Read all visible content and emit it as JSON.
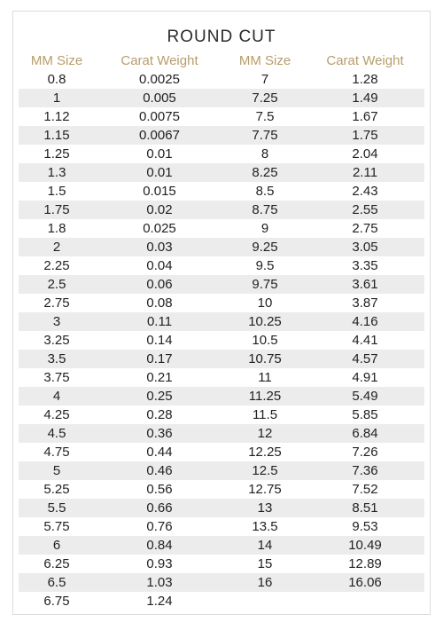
{
  "title": "ROUND CUT",
  "colors": {
    "header_text": "#b79d6b",
    "row_shade": "#ececec",
    "text": "#222222"
  },
  "headers": [
    "MM Size",
    "Carat Weight",
    "MM Size",
    "Carat Weight"
  ],
  "rows": [
    [
      "0.8",
      "0.0025",
      "7",
      "1.28"
    ],
    [
      "1",
      "0.005",
      "7.25",
      "1.49"
    ],
    [
      "1.12",
      "0.0075",
      "7.5",
      "1.67"
    ],
    [
      "1.15",
      "0.0067",
      "7.75",
      "1.75"
    ],
    [
      "1.25",
      "0.01",
      "8",
      "2.04"
    ],
    [
      "1.3",
      "0.01",
      "8.25",
      "2.11"
    ],
    [
      "1.5",
      "0.015",
      "8.5",
      "2.43"
    ],
    [
      "1.75",
      "0.02",
      "8.75",
      "2.55"
    ],
    [
      "1.8",
      "0.025",
      "9",
      "2.75"
    ],
    [
      "2",
      "0.03",
      "9.25",
      "3.05"
    ],
    [
      "2.25",
      "0.04",
      "9.5",
      "3.35"
    ],
    [
      "2.5",
      "0.06",
      "9.75",
      "3.61"
    ],
    [
      "2.75",
      "0.08",
      "10",
      "3.87"
    ],
    [
      "3",
      "0.11",
      "10.25",
      "4.16"
    ],
    [
      "3.25",
      "0.14",
      "10.5",
      "4.41"
    ],
    [
      "3.5",
      "0.17",
      "10.75",
      "4.57"
    ],
    [
      "3.75",
      "0.21",
      "11",
      "4.91"
    ],
    [
      "4",
      "0.25",
      "11.25",
      "5.49"
    ],
    [
      "4.25",
      "0.28",
      "11.5",
      "5.85"
    ],
    [
      "4.5",
      "0.36",
      "12",
      "6.84"
    ],
    [
      "4.75",
      "0.44",
      "12.25",
      "7.26"
    ],
    [
      "5",
      "0.46",
      "12.5",
      "7.36"
    ],
    [
      "5.25",
      "0.56",
      "12.75",
      "7.52"
    ],
    [
      "5.5",
      "0.66",
      "13",
      "8.51"
    ],
    [
      "5.75",
      "0.76",
      "13.5",
      "9.53"
    ],
    [
      "6",
      "0.84",
      "14",
      "10.49"
    ],
    [
      "6.25",
      "0.93",
      "15",
      "12.89"
    ],
    [
      "6.5",
      "1.03",
      "16",
      "16.06"
    ],
    [
      "6.75",
      "1.24",
      "",
      ""
    ]
  ]
}
